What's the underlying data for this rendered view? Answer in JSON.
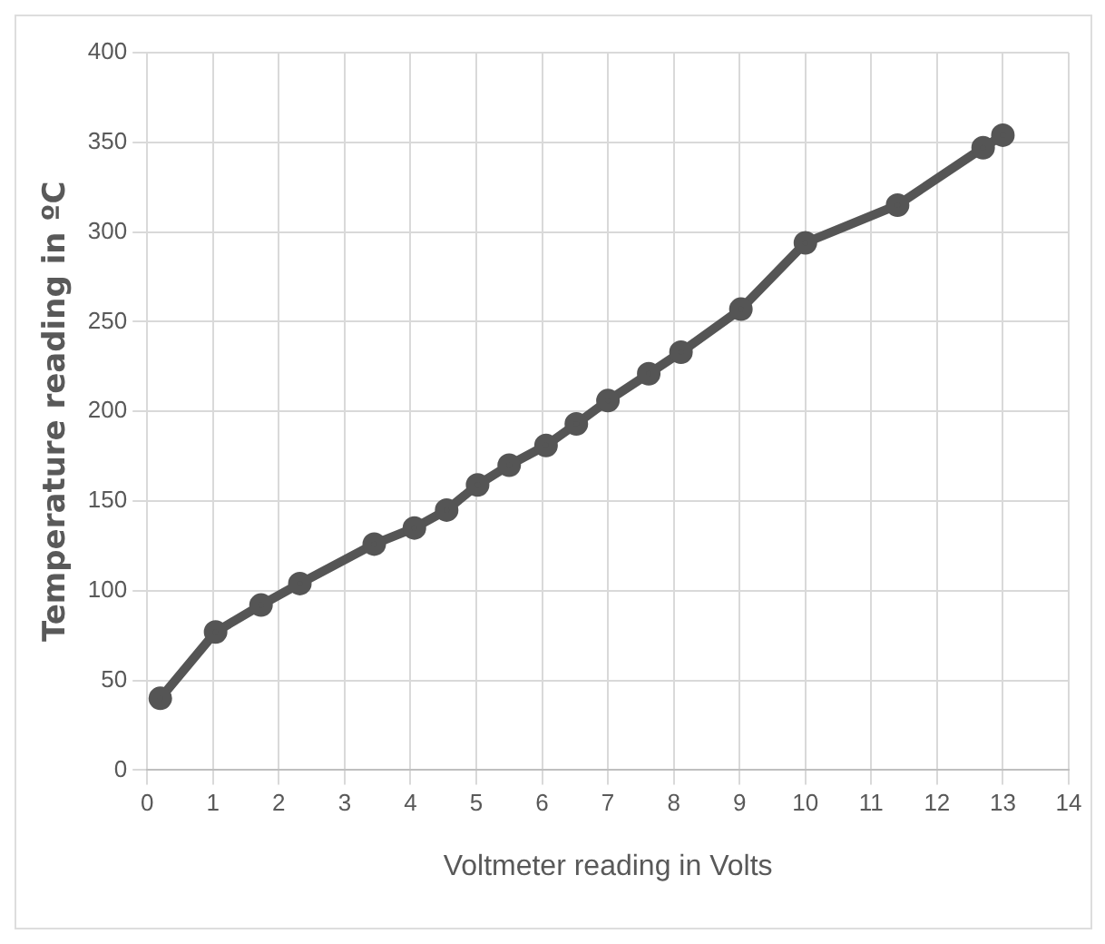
{
  "chart_data": {
    "type": "line",
    "xlabel": "Voltmeter reading in Volts",
    "ylabel": "Temperature reading in ºC",
    "x": [
      0.2,
      1.04,
      1.73,
      2.32,
      3.45,
      4.06,
      4.55,
      5.02,
      5.5,
      6.06,
      6.52,
      7.0,
      7.62,
      8.11,
      9.02,
      10.0,
      11.4,
      12.7,
      13.0
    ],
    "series": [
      {
        "color": "#555555",
        "values": [
          40,
          77,
          92,
          104,
          126,
          135,
          145,
          159,
          170,
          181,
          193,
          206,
          221,
          233,
          257,
          294,
          315,
          347,
          354
        ]
      }
    ],
    "xlim": [
      0,
      14
    ],
    "xticks": [
      0,
      1,
      2,
      3,
      4,
      5,
      6,
      7,
      8,
      9,
      10,
      11,
      12,
      13,
      14
    ],
    "ylim": [
      0,
      400
    ],
    "yticks": [
      0,
      50,
      100,
      150,
      200,
      250,
      300,
      350,
      400
    ],
    "grid": true,
    "legend": false,
    "marker": "circle",
    "line_style": "solid"
  }
}
